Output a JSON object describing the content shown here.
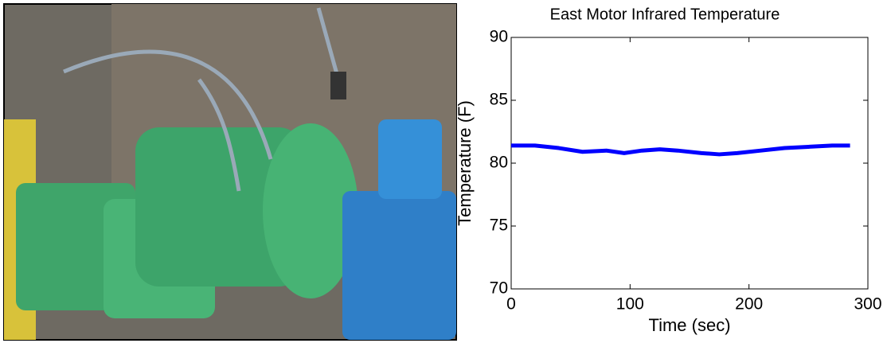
{
  "chart_data": {
    "type": "line",
    "title": "East Motor Infrared Temperature",
    "x_label": "Time (sec)",
    "y_label": "Temperature (F)",
    "x": [
      0,
      20,
      40,
      60,
      80,
      95,
      110,
      125,
      140,
      160,
      175,
      190,
      210,
      230,
      250,
      270,
      285
    ],
    "series": [
      {
        "name": "East Motor",
        "color": "#0000ff",
        "values": [
          81.4,
          81.4,
          81.2,
          80.9,
          81.0,
          80.8,
          81.0,
          81.1,
          81.0,
          80.8,
          80.7,
          80.8,
          81.0,
          81.2,
          81.3,
          81.4,
          81.4
        ]
      }
    ],
    "xlim": [
      0,
      300
    ],
    "ylim": [
      70,
      90
    ],
    "xticks": [
      0,
      100,
      200,
      300
    ],
    "yticks": [
      70,
      75,
      80,
      85,
      90
    ]
  }
}
